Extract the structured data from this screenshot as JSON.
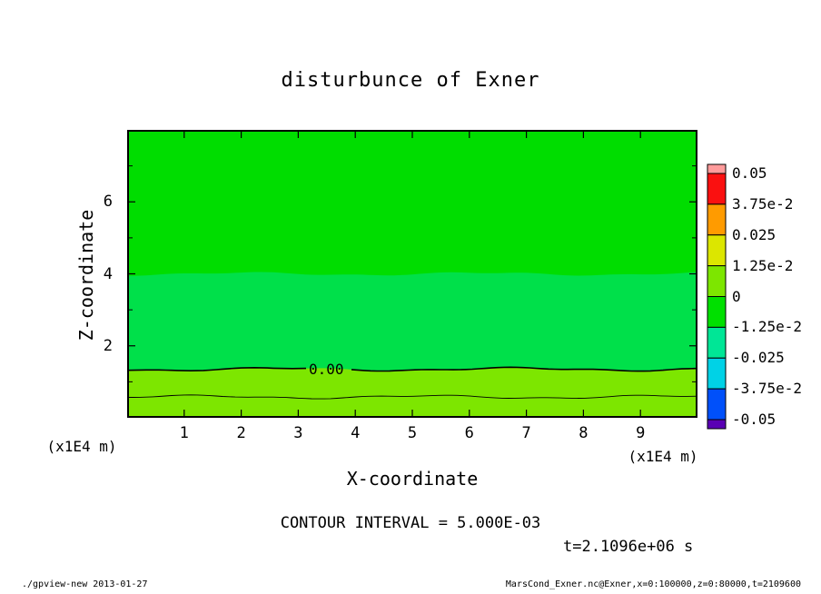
{
  "title": "disturbunce of Exner",
  "axes": {
    "x_label": "X-coordinate",
    "y_label": "Z-coordinate",
    "x_unit": "(x1E4 m)",
    "y_unit": "(x1E4 m)"
  },
  "colorbar": {
    "labels": [
      "0.05",
      "3.75e-2",
      "0.025",
      "1.25e-2",
      "0",
      "-1.25e-2",
      "-0.025",
      "-3.75e-2",
      "-0.05"
    ]
  },
  "captions": {
    "contour_interval": "CONTOUR INTERVAL = 5.000E-03",
    "time": "t=2.1096e+06 s"
  },
  "footer": {
    "left": "./gpview-new  2013-01-27",
    "right": "MarsCond_Exner.nc@Exner,x=0:100000,z=0:80000,t=2109600"
  },
  "chart_data": {
    "type": "heatmap",
    "title": "disturbunce of Exner",
    "xlabel": "X-coordinate",
    "ylabel": "Z-coordinate",
    "x_unit": "x1E4 m",
    "y_unit": "x1E4 m",
    "xlim": [
      0,
      10
    ],
    "ylim": [
      0,
      8
    ],
    "x_ticks": [
      1,
      2,
      3,
      4,
      5,
      6,
      7,
      8,
      9
    ],
    "y_ticks": [
      2,
      4,
      6
    ],
    "y_minor_ticks": [
      1,
      3,
      5,
      7
    ],
    "contour_interval": 0.005,
    "time_seconds": 2109600,
    "colorbar_levels": [
      0.05,
      0.0375,
      0.025,
      0.0125,
      0,
      -0.0125,
      -0.025,
      -0.0375,
      -0.05
    ],
    "colorbar_colors": [
      "#ff9b9b",
      "#fa1010",
      "#ff9b00",
      "#dce600",
      "#7de600",
      "#00e000",
      "#00e696",
      "#00d2e6",
      "#0050fa",
      "#5a00b4"
    ],
    "bands": [
      {
        "z_range": [
          4.0,
          8.0
        ],
        "color": "#00dd00",
        "value_range": "-1.25e-2 to 0"
      },
      {
        "z_range": [
          1.35,
          4.0
        ],
        "color": "#00e04a",
        "value_range": "-1.25e-2 to 0"
      },
      {
        "z_range": [
          0.0,
          1.35
        ],
        "color": "#7de600",
        "value_range": "0 to 1.25e-2"
      }
    ],
    "contours": [
      {
        "value": 0.0,
        "z": 1.35,
        "label": "0.00"
      },
      {
        "value": 0.005,
        "z": 0.58,
        "label": ""
      }
    ]
  }
}
